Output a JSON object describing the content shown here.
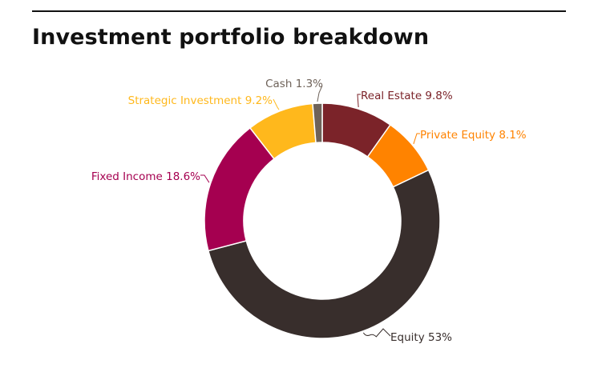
{
  "title": "Investment portfolio breakdown",
  "chart_data": {
    "type": "pie",
    "variant": "donut",
    "title": "Investment portfolio breakdown",
    "start": "top",
    "direction": "clockwise",
    "slices": [
      {
        "label": "Real Estate",
        "value": 9.8,
        "display": "Real Estate 9.8%",
        "color": "#7b2329"
      },
      {
        "label": "Private Equity",
        "value": 8.1,
        "display": "Private Equity 8.1%",
        "color": "#ff8300"
      },
      {
        "label": "Equity",
        "value": 53,
        "display": "Equity 53%",
        "color": "#382e2c"
      },
      {
        "label": "Fixed Income",
        "value": 18.6,
        "display": "Fixed Income 18.6%",
        "color": "#a50050"
      },
      {
        "label": "Strategic Investment",
        "value": 9.2,
        "display": "Strategic Investment 9.2%",
        "color": "#ffb81c"
      },
      {
        "label": "Cash",
        "value": 1.3,
        "display": "Cash 1.3%",
        "color": "#6e6259"
      }
    ],
    "legend": "none",
    "labels": "outside with leader lines"
  }
}
